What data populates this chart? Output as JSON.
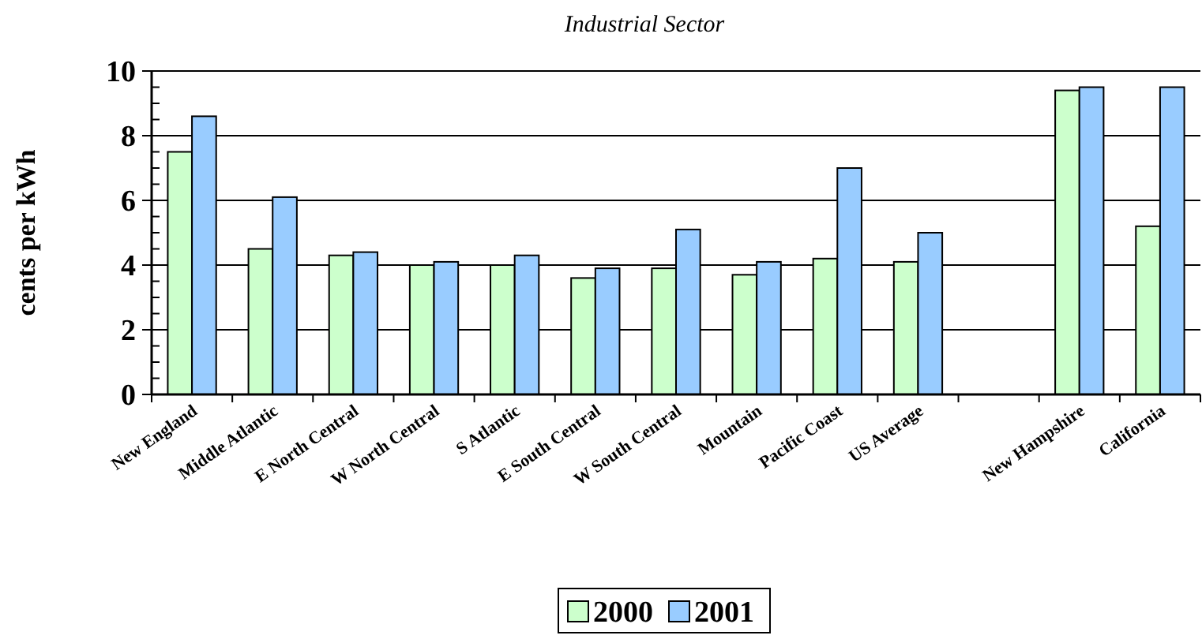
{
  "chart_data": {
    "type": "bar",
    "title": "Industrial Sector",
    "ylabel": "cents per kWh",
    "categories": [
      "New England",
      "Middle Atlantic",
      "E North Central",
      "W North Central",
      "S Atlantic",
      "E South Central",
      "W South Central",
      "Mountain",
      "Pacific Coast",
      "US Average",
      null,
      "New Hampshire",
      "California"
    ],
    "series": [
      {
        "name": "2000",
        "color": "#ccffcc",
        "values": [
          7.5,
          4.5,
          4.3,
          4.0,
          4.0,
          3.6,
          3.9,
          3.7,
          4.2,
          4.1,
          null,
          9.4,
          5.2
        ]
      },
      {
        "name": "2001",
        "color": "#99ccff",
        "values": [
          8.6,
          6.1,
          4.4,
          4.1,
          4.3,
          3.9,
          5.1,
          4.1,
          7.0,
          5.0,
          null,
          9.5,
          9.5
        ]
      }
    ],
    "ylim": [
      0,
      10
    ],
    "yticks": [
      0,
      {
        "value": 0.5,
        "label": null
      },
      2,
      {
        "value": 1,
        "label": null
      },
      {
        "value": 1.5,
        "label": null
      },
      {
        "value": 2.5,
        "label": null
      },
      {
        "value": 3,
        "label": null
      },
      {
        "value": 3.5,
        "label": null
      },
      4,
      {
        "value": 4.5,
        "label": null
      },
      {
        "value": 5,
        "label": null
      },
      {
        "value": 5.5,
        "label": null
      },
      6,
      {
        "value": 6.5,
        "label": null
      },
      {
        "value": 7,
        "label": null
      },
      {
        "value": 7.5,
        "label": null
      },
      8,
      {
        "value": 8.5,
        "label": null
      },
      {
        "value": 9,
        "label": null
      },
      {
        "value": 9.5,
        "label": null
      },
      10
    ],
    "grid": "y",
    "legend": "bottom"
  }
}
